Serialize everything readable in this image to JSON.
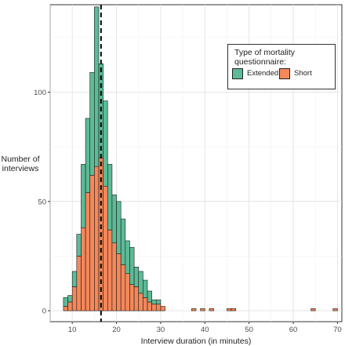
{
  "chart_data": {
    "type": "bar",
    "xlabel": "Interview duration (in minutes)",
    "ylabel_line1": "Number of",
    "ylabel_line2": "interviews",
    "xlim": [
      5,
      71
    ],
    "ylim": [
      -5,
      140
    ],
    "x_ticks": [
      10,
      20,
      30,
      40,
      50,
      60,
      70
    ],
    "y_ticks": [
      0,
      50,
      100
    ],
    "bin_width": 1,
    "stacked": true,
    "grid": true,
    "vline": 16.5,
    "legend_position": "top-right",
    "legend_title_line1": "Type of mortality",
    "legend_title_line2": "questionnaire:",
    "bins": [
      8,
      9,
      10,
      11,
      12,
      13,
      14,
      15,
      16,
      17,
      18,
      19,
      20,
      21,
      22,
      23,
      24,
      25,
      26,
      27,
      28,
      29,
      30,
      31,
      32,
      33,
      34,
      35,
      36,
      37,
      38,
      39,
      40,
      41,
      42,
      43,
      44,
      45,
      46,
      47,
      48,
      49,
      50,
      51,
      52,
      53,
      54,
      55,
      56,
      57,
      58,
      59,
      60,
      61,
      62,
      63,
      64,
      65,
      66,
      67,
      68,
      69
    ],
    "series": [
      {
        "name": "Short",
        "color": "#f4885a",
        "values": [
          2,
          4,
          11,
          25,
          38,
          54,
          62,
          66,
          70,
          57,
          37,
          31,
          26,
          21,
          17,
          12,
          11,
          8,
          6,
          4,
          3,
          3,
          2,
          0,
          0,
          0,
          0,
          0,
          0,
          1,
          0,
          1,
          0,
          1,
          0,
          0,
          0,
          1,
          1,
          0,
          0,
          0,
          0,
          0,
          0,
          0,
          0,
          0,
          0,
          0,
          0,
          0,
          0,
          0,
          0,
          0,
          1,
          0,
          0,
          0,
          0,
          1
        ]
      },
      {
        "name": "Extended",
        "color": "#5dbb97",
        "values": [
          4,
          3,
          7,
          10,
          29,
          34,
          47,
          73,
          43,
          39,
          30,
          22,
          24,
          21,
          15,
          17,
          9,
          10,
          8,
          5,
          2,
          2,
          0,
          0,
          0,
          0,
          0,
          0,
          0,
          0,
          0,
          0,
          0,
          0,
          0,
          0,
          0,
          0,
          0,
          0,
          0,
          0,
          0,
          0,
          0,
          0,
          0,
          0,
          0,
          0,
          0,
          0,
          0,
          0,
          0,
          0,
          0,
          0,
          0,
          0,
          0,
          0
        ]
      }
    ]
  },
  "legend": {
    "items": [
      {
        "label": "Extended",
        "color": "#5dbb97"
      },
      {
        "label": "Short",
        "color": "#f4885a"
      }
    ]
  }
}
